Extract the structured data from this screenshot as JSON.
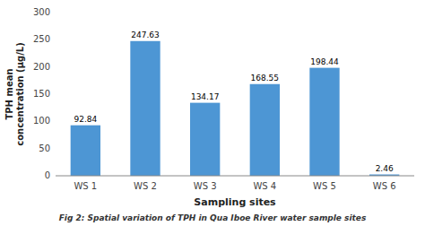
{
  "chart_data": {
    "type": "bar",
    "caption": "Fig 2: Spatial variation of TPH in Qua Iboe River water sample sites",
    "xlabel": "Sampling sites",
    "ylabel": "TPH mean\nconcentration (µg/L)",
    "categories": [
      "WS 1",
      "WS 2",
      "WS 3",
      "WS 4",
      "WS 5",
      "WS 6"
    ],
    "values": [
      92.84,
      247.63,
      134.17,
      168.55,
      198.44,
      2.46
    ],
    "color": "#4d96d4",
    "ylim": [
      0,
      300
    ],
    "yticks": [
      0,
      50,
      100,
      150,
      200,
      250,
      300
    ],
    "grid": false,
    "data_labels": true
  }
}
